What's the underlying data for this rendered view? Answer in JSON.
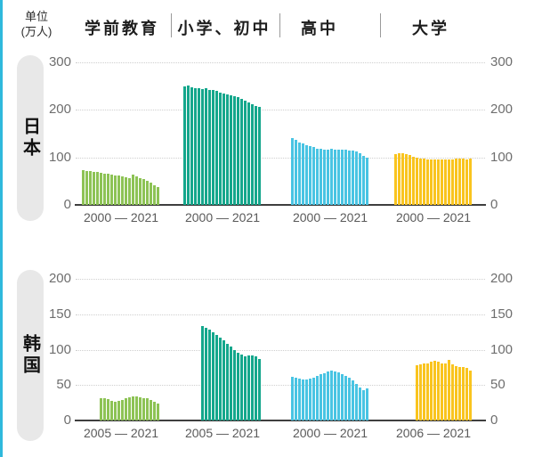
{
  "unit": {
    "line1": "单位",
    "line2": "(万人)"
  },
  "header": {
    "categories": [
      "学前教育",
      "小学、初中",
      "高中",
      "大学"
    ]
  },
  "colors": {
    "accent_stripe": "#2fb9dc",
    "preschool": "#8dc355",
    "primary_school": "#14a78c",
    "high_school": "#49c4e3",
    "university": "#f9c41e",
    "pill_background": "#e8e8e8",
    "axis_line": "#3f3f3f",
    "gridline": "#cfcfcf",
    "tick_text": "#6e6e6e",
    "header_text": "#1d1d1d"
  },
  "chart_data": {
    "type": "bar",
    "unit": "万人",
    "note": "values estimated from bar heights",
    "rows": [
      {
        "country": "日本",
        "ylim": [
          0,
          300
        ],
        "yticks": [
          300,
          200,
          100,
          0
        ],
        "charts": [
          {
            "category": "学前教育",
            "series_color": "#8dc355",
            "years_label": "2000 — 2021",
            "start_year": 2000,
            "end_year": 2021,
            "values": [
              73,
              72,
              71,
              70,
              69,
              67,
              66,
              65,
              64,
              62,
              61,
              60,
              58,
              57,
              64,
              60,
              57,
              54,
              51,
              46,
              42,
              37
            ]
          },
          {
            "category": "小学、初中",
            "series_color": "#14a78c",
            "years_label": "2000 — 2021",
            "start_year": 2000,
            "end_year": 2021,
            "values": [
              250,
              252,
              248,
              246,
              245,
              244,
              245,
              242,
              241,
              240,
              237,
              235,
              233,
              231,
              229,
              226,
              223,
              219,
              215,
              212,
              209,
              206
            ]
          },
          {
            "category": "高中",
            "series_color": "#49c4e3",
            "years_label": "2000 — 2021",
            "start_year": 2000,
            "end_year": 2021,
            "values": [
              140,
              136,
              132,
              129,
              126,
              123,
              121,
              119,
              118,
              117,
              117,
              118,
              117,
              117,
              116,
              116,
              115,
              114,
              112,
              109,
              104,
              99
            ]
          },
          {
            "category": "大学",
            "series_color": "#f9c41e",
            "years_label": "2000 — 2021",
            "start_year": 2000,
            "end_year": 2021,
            "values": [
              107,
              108,
              108,
              107,
              105,
              102,
              100,
              98,
              97,
              96,
              95,
              96,
              96,
              95,
              95,
              96,
              96,
              97,
              97,
              97,
              96,
              97
            ]
          }
        ]
      },
      {
        "country": "韩国",
        "ylim": [
          0,
          200
        ],
        "yticks": [
          200,
          150,
          100,
          50,
          0
        ],
        "charts": [
          {
            "category": "学前教育",
            "series_color": "#8dc355",
            "years_label": "2005 — 2021",
            "start_year": 2005,
            "end_year": 2021,
            "values": [
              31,
              31,
              30,
              28,
              27,
              28,
              29,
              31,
              33,
              34,
              34,
              33,
              32,
              31,
              29,
              26,
              24
            ]
          },
          {
            "category": "小学、初中",
            "series_color": "#14a78c",
            "years_label": "2005 — 2021",
            "start_year": 2005,
            "end_year": 2021,
            "values": [
              133,
              131,
              128,
              125,
              121,
              117,
              113,
              108,
              104,
              100,
              96,
              93,
              91,
              92,
              92,
              90,
              87
            ]
          },
          {
            "category": "高中",
            "series_color": "#49c4e3",
            "years_label": "2000 — 2021",
            "start_year": 2000,
            "end_year": 2021,
            "values": [
              62,
              61,
              59,
              58,
              58,
              59,
              61,
              63,
              65,
              67,
              69,
              70,
              69,
              68,
              66,
              63,
              60,
              56,
              51,
              46,
              43,
              45
            ]
          },
          {
            "category": "大学",
            "series_color": "#f9c41e",
            "years_label": "2006 — 2021",
            "start_year": 2006,
            "end_year": 2021,
            "values": [
              78,
              79,
              80,
              81,
              83,
              84,
              83,
              81,
              80,
              85,
              79,
              77,
              76,
              75,
              74,
              70
            ]
          }
        ]
      }
    ]
  }
}
